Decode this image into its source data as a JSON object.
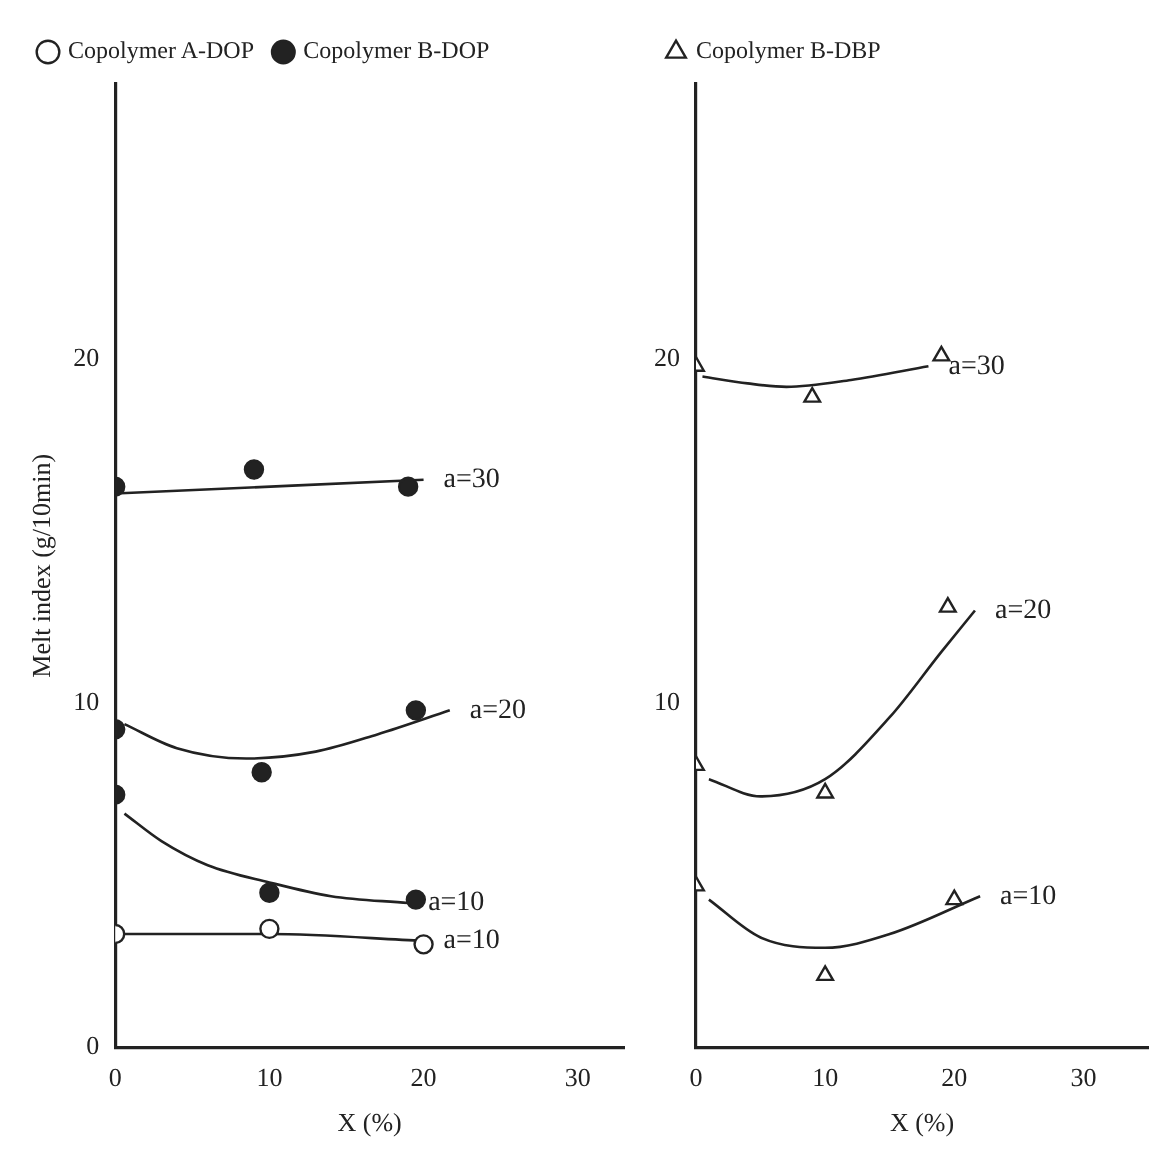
{
  "chart_data": [
    {
      "type": "scatter",
      "xlabel": "X (%)",
      "ylabel": "Melt index (g/10min)",
      "xlim": [
        0,
        33
      ],
      "ylim": [
        0,
        28
      ],
      "xticks": [
        0,
        10,
        20,
        30
      ],
      "yticks": [
        0,
        10,
        20
      ],
      "grid": false,
      "legend": "top left",
      "series": [
        {
          "name": "Copolymer A-DOP",
          "marker": "circle",
          "color": "#ffffff",
          "x": [
            0,
            10,
            20
          ],
          "values": [
            3.3,
            3.45,
            3.0
          ]
        },
        {
          "name": "Copolymer B-DOP",
          "marker": "circle",
          "color": "#222222",
          "x": [
            0,
            9,
            19,
            0,
            9.5,
            19.5,
            0,
            10,
            19.5
          ],
          "values": [
            16.3,
            16.8,
            16.3,
            9.25,
            8.0,
            9.8,
            7.35,
            4.5,
            4.3
          ]
        },
        {
          "type": "line",
          "marker": "none",
          "line_style": "solid",
          "color": "#222222",
          "x": [
            0,
            10,
            20
          ],
          "values": [
            3.3,
            3.3,
            3.1
          ]
        },
        {
          "type": "line",
          "marker": "none",
          "line_style": "solid",
          "color": "#222222",
          "x": [
            0,
            20
          ],
          "values": [
            16.1,
            16.5
          ]
        },
        {
          "type": "line",
          "marker": "none",
          "line_style": "solid",
          "color": "#222222",
          "x": [
            0.6,
            4,
            8.5,
            13,
            17,
            21.7
          ],
          "values": [
            9.4,
            8.7,
            8.4,
            8.6,
            9.1,
            9.8
          ]
        },
        {
          "type": "line",
          "marker": "none",
          "line_style": "solid",
          "color": "#222222",
          "x": [
            0.6,
            3,
            6,
            10,
            14,
            19
          ],
          "values": [
            6.8,
            6.0,
            5.3,
            4.8,
            4.4,
            4.2
          ]
        }
      ],
      "annotations": [
        {
          "text": "a=30",
          "x": 20,
          "y": 16.5
        },
        {
          "text": "a=20",
          "x": 21.7,
          "y": 9.8
        },
        {
          "text": "a=10",
          "x": 19,
          "y": 4.2
        },
        {
          "text": "a=10",
          "x": 20,
          "y": 3.1
        }
      ]
    },
    {
      "type": "scatter",
      "xlabel": "X (%)",
      "xlim": [
        0,
        35
      ],
      "ylim": [
        0,
        28
      ],
      "xticks": [
        0,
        10,
        20,
        30
      ],
      "yticks": [
        10,
        20
      ],
      "grid": false,
      "legend": "top left",
      "series": [
        {
          "name": "Copolymer B-DBP",
          "marker": "triangle",
          "color": "#ffffff",
          "x": [
            0,
            9,
            19,
            0,
            10,
            19.5,
            0,
            10,
            20
          ],
          "values": [
            19.8,
            18.9,
            20.1,
            8.2,
            7.4,
            12.8,
            4.7,
            2.1,
            4.3
          ]
        },
        {
          "type": "line",
          "marker": "none",
          "line_style": "solid",
          "color": "#222222",
          "x": [
            0.5,
            4,
            7,
            12,
            18
          ],
          "values": [
            19.5,
            19.3,
            19.2,
            19.4,
            19.8
          ]
        },
        {
          "type": "line",
          "marker": "none",
          "line_style": "solid",
          "color": "#222222",
          "x": [
            1,
            5,
            10,
            15,
            19,
            21.6
          ],
          "values": [
            7.8,
            7.3,
            7.8,
            9.6,
            11.5,
            12.7
          ]
        },
        {
          "type": "line",
          "marker": "none",
          "line_style": "solid",
          "color": "#222222",
          "x": [
            1,
            5,
            10,
            15,
            22
          ],
          "values": [
            4.3,
            3.2,
            2.9,
            3.3,
            4.4
          ]
        }
      ],
      "annotations": [
        {
          "text": "a=30",
          "x": 18,
          "y": 19.8
        },
        {
          "text": "a=20",
          "x": 21.6,
          "y": 12.7
        },
        {
          "text": "a=10",
          "x": 22,
          "y": 4.4
        }
      ]
    }
  ]
}
